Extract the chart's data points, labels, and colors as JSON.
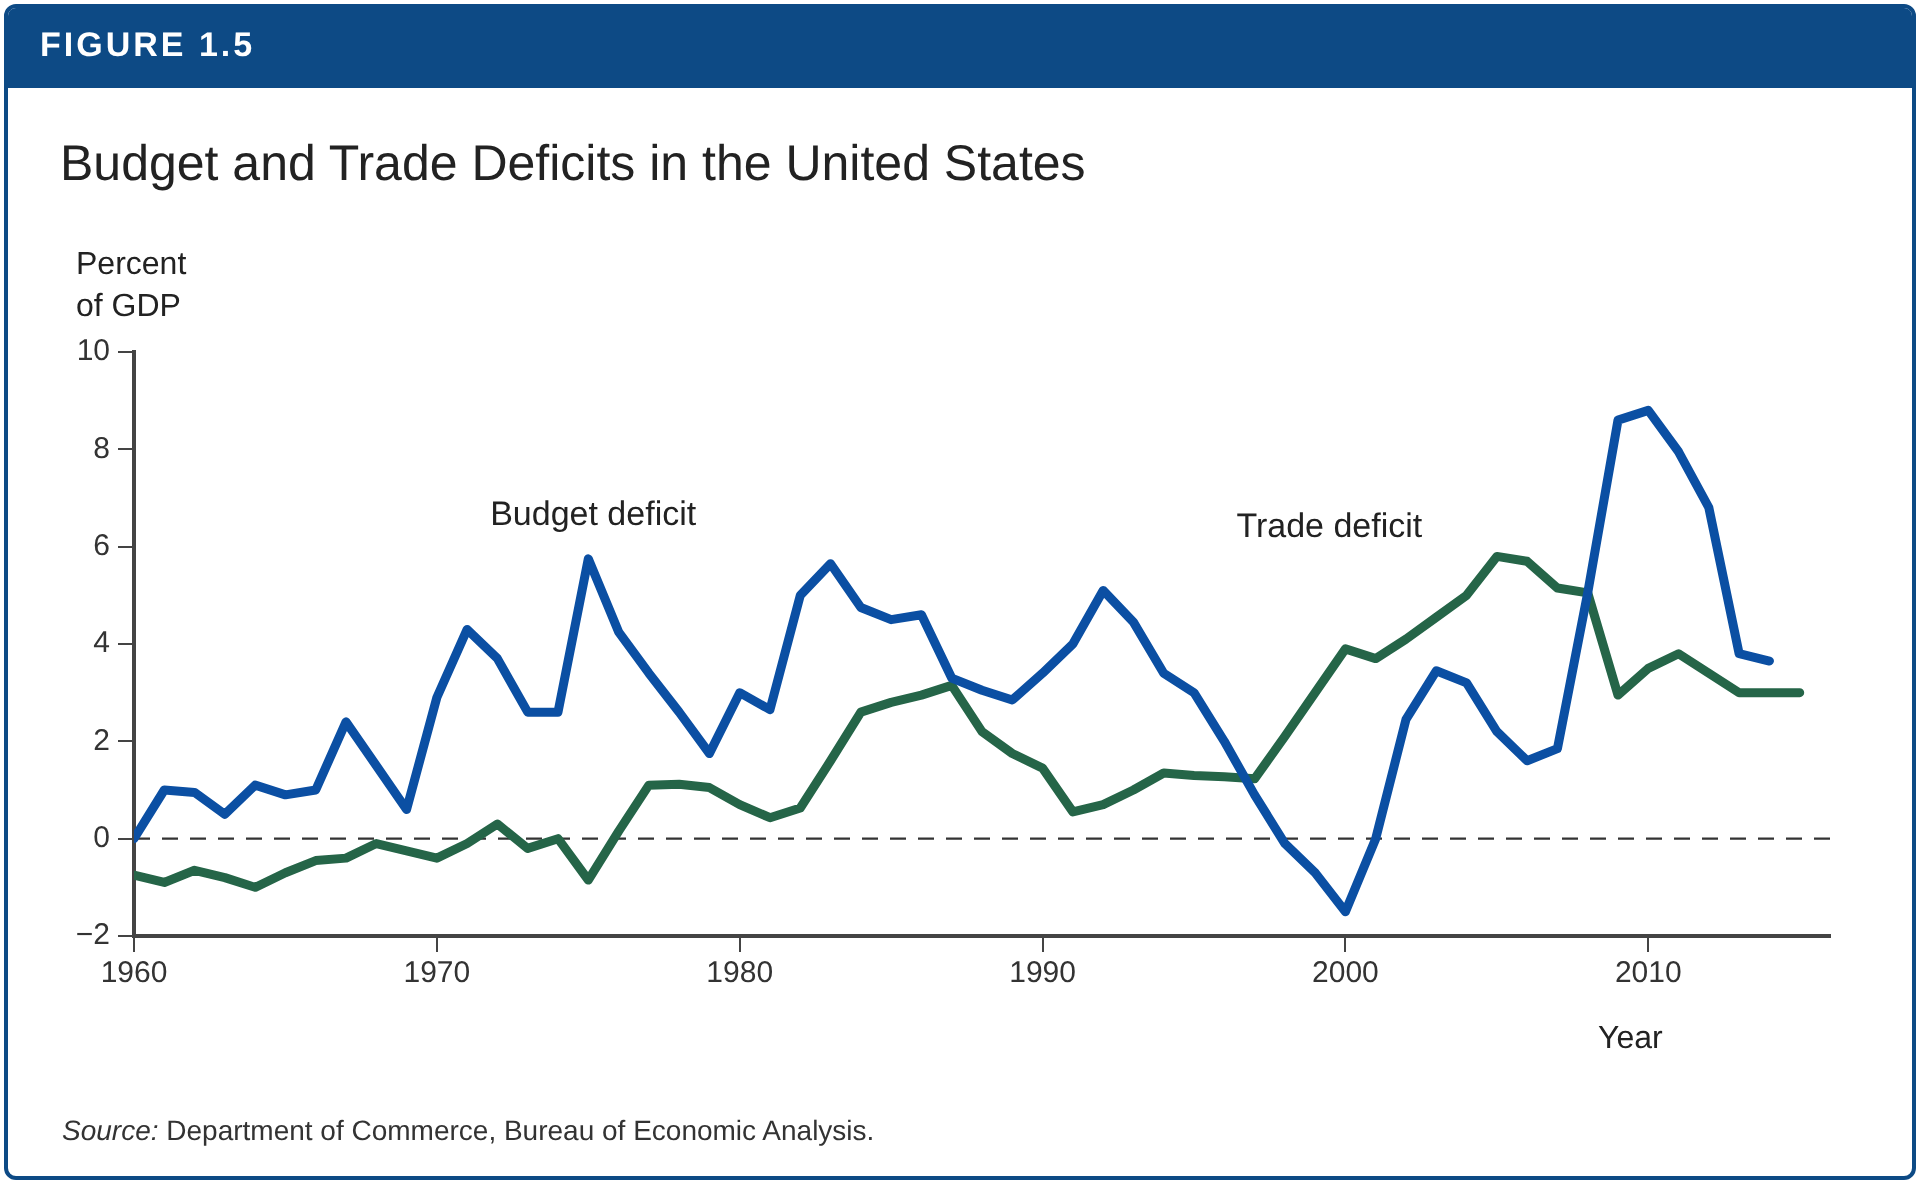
{
  "chart_data": {
    "type": "line",
    "title": "Budget and Trade Deficits in the United States",
    "ylabel": "Percent of GDP",
    "xlabel": "Year",
    "annotations": [
      "FIGURE 1.5",
      "Source: Department of Commerce, Bureau of Economic Analysis."
    ],
    "x": [
      1960,
      1961,
      1962,
      1963,
      1964,
      1965,
      1966,
      1967,
      1968,
      1969,
      1970,
      1971,
      1972,
      1973,
      1974,
      1975,
      1976,
      1977,
      1978,
      1979,
      1980,
      1981,
      1982,
      1983,
      1984,
      1985,
      1986,
      1987,
      1988,
      1989,
      1990,
      1991,
      1992,
      1993,
      1994,
      1995,
      1996,
      1997,
      1998,
      1999,
      2000,
      2001,
      2002,
      2003,
      2004,
      2005,
      2006,
      2007,
      2008,
      2009,
      2010,
      2011,
      2012,
      2013,
      2014,
      2015
    ],
    "series": [
      {
        "name": "Budget deficit",
        "color": "#0b4fa3",
        "values": [
          0,
          1.0,
          0.95,
          0.5,
          1.1,
          0.9,
          1.0,
          2.4,
          1.5,
          0.6,
          2.9,
          4.3,
          3.7,
          2.6,
          2.6,
          5.75,
          4.25,
          3.4,
          2.6,
          1.75,
          3.0,
          2.65,
          5.0,
          5.65,
          4.75,
          4.5,
          4.6,
          3.3,
          3.05,
          2.85,
          3.4,
          4.0,
          5.1,
          4.45,
          3.4,
          3.0,
          2.0,
          0.9,
          -0.1,
          -0.7,
          -1.5,
          0,
          2.45,
          3.45,
          3.2,
          2.2,
          1.6,
          1.85,
          5.05,
          8.6,
          8.8,
          7.95,
          6.8,
          3.8,
          3.65,
          null
        ]
      },
      {
        "name": "Trade deficit",
        "color": "#256548",
        "values": [
          -0.75,
          -0.9,
          -0.65,
          -0.8,
          -1.0,
          -0.7,
          -0.45,
          -0.4,
          -0.1,
          -0.25,
          -0.4,
          -0.1,
          0.3,
          -0.2,
          0,
          -0.85,
          0.15,
          1.1,
          1.12,
          1.05,
          0.7,
          0.43,
          0.63,
          1.6,
          2.6,
          2.8,
          2.95,
          3.15,
          2.2,
          1.75,
          1.45,
          0.55,
          0.7,
          1.0,
          1.35,
          1.3,
          1.27,
          1.23,
          2.1,
          3.0,
          3.9,
          3.7,
          4.1,
          4.55,
          5.0,
          5.8,
          5.7,
          5.15,
          5.05,
          2.95,
          3.5,
          3.8,
          3.4,
          3.0,
          3.0,
          3.0
        ]
      }
    ],
    "xlim": [
      1960,
      2016
    ],
    "xticks": [
      1960,
      1970,
      1980,
      1990,
      2000,
      2010
    ],
    "ylim": [
      -2,
      10
    ],
    "yticks": [
      {
        "value": -2,
        "label": "−2"
      },
      0,
      2,
      4,
      6,
      8,
      10
    ],
    "ref_lines": [
      {
        "axis": "y",
        "value": 0,
        "line_style": "dashed",
        "color": "#333333"
      }
    ],
    "grid": false,
    "legend": false,
    "marker": "none",
    "line_style": "solid"
  }
}
